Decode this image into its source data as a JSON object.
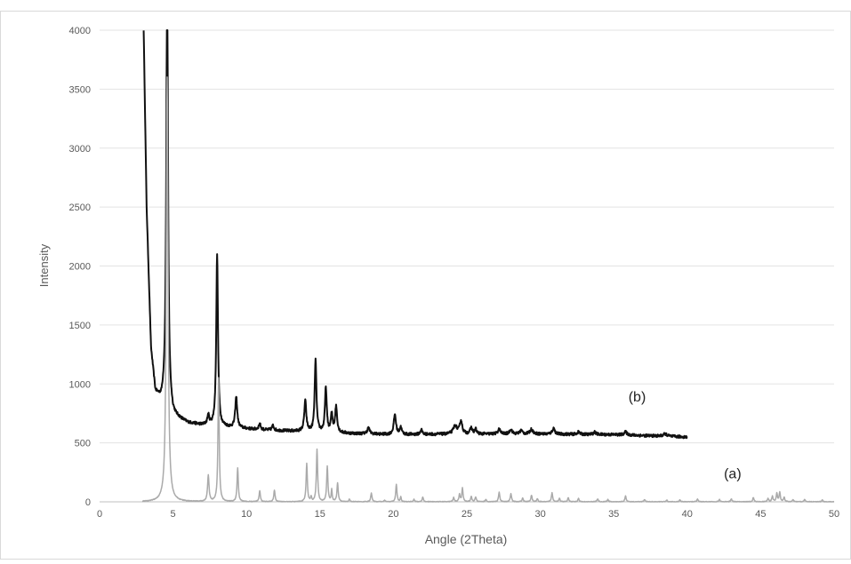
{
  "chart_data": {
    "type": "line",
    "title": "",
    "xlabel": "Angle (2Theta)",
    "ylabel": "Intensity",
    "xlim": [
      0,
      50
    ],
    "ylim": [
      0,
      4000
    ],
    "x_ticks": [
      0,
      5,
      10,
      15,
      20,
      25,
      30,
      35,
      40,
      45,
      50
    ],
    "y_ticks": [
      0,
      500,
      1000,
      1500,
      2000,
      2500,
      3000,
      3500,
      4000
    ],
    "grid": "horizontal",
    "legend": "none",
    "annotations": [
      {
        "text": "(b)",
        "x": 36.0,
        "y": 850
      },
      {
        "text": "(a)",
        "x": 42.5,
        "y": 200
      }
    ],
    "series": [
      {
        "color": "#111111",
        "baseline": [
          [
            3.0,
            4000
          ],
          [
            3.2,
            2500
          ],
          [
            3.5,
            1300
          ],
          [
            3.8,
            930
          ],
          [
            4.2,
            850
          ],
          [
            4.5,
            900
          ],
          [
            5.0,
            730
          ],
          [
            6.0,
            670
          ],
          [
            7.0,
            650
          ],
          [
            9.0,
            630
          ],
          [
            11.0,
            610
          ],
          [
            13.0,
            600
          ],
          [
            15.0,
            590
          ],
          [
            17.0,
            580
          ],
          [
            18.5,
            575
          ],
          [
            20.0,
            570
          ],
          [
            25.0,
            575
          ],
          [
            30.0,
            575
          ],
          [
            35.0,
            570
          ],
          [
            40.0,
            550
          ]
        ],
        "peaks": [
          {
            "x": 4.6,
            "h": 3600,
            "w": 0.07
          },
          {
            "x": 7.4,
            "h": 80,
            "w": 0.08
          },
          {
            "x": 8.0,
            "h": 1460,
            "w": 0.07
          },
          {
            "x": 9.3,
            "h": 260,
            "w": 0.08
          },
          {
            "x": 10.9,
            "h": 50,
            "w": 0.08
          },
          {
            "x": 11.8,
            "h": 40,
            "w": 0.08
          },
          {
            "x": 14.0,
            "h": 260,
            "w": 0.08
          },
          {
            "x": 14.7,
            "h": 610,
            "w": 0.07
          },
          {
            "x": 15.4,
            "h": 380,
            "w": 0.07
          },
          {
            "x": 15.8,
            "h": 150,
            "w": 0.07
          },
          {
            "x": 16.1,
            "h": 220,
            "w": 0.08
          },
          {
            "x": 18.3,
            "h": 50,
            "w": 0.1
          },
          {
            "x": 20.1,
            "h": 170,
            "w": 0.09
          },
          {
            "x": 20.5,
            "h": 60,
            "w": 0.08
          },
          {
            "x": 21.9,
            "h": 40,
            "w": 0.08
          },
          {
            "x": 24.2,
            "h": 70,
            "w": 0.15
          },
          {
            "x": 24.6,
            "h": 110,
            "w": 0.1
          },
          {
            "x": 25.3,
            "h": 50,
            "w": 0.09
          },
          {
            "x": 25.6,
            "h": 40,
            "w": 0.08
          },
          {
            "x": 27.2,
            "h": 40,
            "w": 0.1
          },
          {
            "x": 28.0,
            "h": 40,
            "w": 0.1
          },
          {
            "x": 28.7,
            "h": 30,
            "w": 0.1
          },
          {
            "x": 29.4,
            "h": 40,
            "w": 0.12
          },
          {
            "x": 30.9,
            "h": 50,
            "w": 0.1
          },
          {
            "x": 32.6,
            "h": 20,
            "w": 0.1
          },
          {
            "x": 33.7,
            "h": 20,
            "w": 0.1
          },
          {
            "x": 35.8,
            "h": 25,
            "w": 0.12
          },
          {
            "x": 38.5,
            "h": 20,
            "w": 0.15
          }
        ],
        "noise": 12
      },
      {
        "color": "#aaaaaa",
        "baseline": [
          [
            2.9,
            0
          ],
          [
            50.0,
            0
          ]
        ],
        "peaks": [
          {
            "x": 4.6,
            "h": 3600,
            "w": 0.07
          },
          {
            "x": 7.4,
            "h": 220,
            "w": 0.06
          },
          {
            "x": 8.1,
            "h": 1050,
            "w": 0.05
          },
          {
            "x": 9.4,
            "h": 285,
            "w": 0.05
          },
          {
            "x": 10.9,
            "h": 95,
            "w": 0.05
          },
          {
            "x": 11.9,
            "h": 100,
            "w": 0.05
          },
          {
            "x": 14.1,
            "h": 325,
            "w": 0.05
          },
          {
            "x": 14.4,
            "h": 40,
            "w": 0.04
          },
          {
            "x": 14.8,
            "h": 445,
            "w": 0.05
          },
          {
            "x": 15.5,
            "h": 300,
            "w": 0.05
          },
          {
            "x": 15.8,
            "h": 100,
            "w": 0.04
          },
          {
            "x": 16.2,
            "h": 160,
            "w": 0.05
          },
          {
            "x": 17.0,
            "h": 20,
            "w": 0.05
          },
          {
            "x": 18.5,
            "h": 75,
            "w": 0.05
          },
          {
            "x": 19.4,
            "h": 15,
            "w": 0.05
          },
          {
            "x": 20.2,
            "h": 145,
            "w": 0.05
          },
          {
            "x": 20.5,
            "h": 40,
            "w": 0.04
          },
          {
            "x": 21.4,
            "h": 20,
            "w": 0.05
          },
          {
            "x": 22.0,
            "h": 40,
            "w": 0.05
          },
          {
            "x": 24.1,
            "h": 35,
            "w": 0.05
          },
          {
            "x": 24.5,
            "h": 60,
            "w": 0.05
          },
          {
            "x": 24.7,
            "h": 115,
            "w": 0.05
          },
          {
            "x": 25.3,
            "h": 45,
            "w": 0.05
          },
          {
            "x": 25.6,
            "h": 40,
            "w": 0.05
          },
          {
            "x": 26.3,
            "h": 20,
            "w": 0.05
          },
          {
            "x": 27.2,
            "h": 80,
            "w": 0.05
          },
          {
            "x": 28.0,
            "h": 70,
            "w": 0.05
          },
          {
            "x": 28.8,
            "h": 30,
            "w": 0.05
          },
          {
            "x": 29.4,
            "h": 55,
            "w": 0.05
          },
          {
            "x": 29.8,
            "h": 25,
            "w": 0.05
          },
          {
            "x": 30.8,
            "h": 75,
            "w": 0.05
          },
          {
            "x": 31.3,
            "h": 30,
            "w": 0.05
          },
          {
            "x": 31.9,
            "h": 35,
            "w": 0.05
          },
          {
            "x": 32.6,
            "h": 30,
            "w": 0.05
          },
          {
            "x": 33.9,
            "h": 25,
            "w": 0.05
          },
          {
            "x": 34.6,
            "h": 20,
            "w": 0.05
          },
          {
            "x": 35.8,
            "h": 50,
            "w": 0.05
          },
          {
            "x": 37.1,
            "h": 20,
            "w": 0.05
          },
          {
            "x": 38.6,
            "h": 15,
            "w": 0.05
          },
          {
            "x": 39.5,
            "h": 15,
            "w": 0.05
          },
          {
            "x": 40.7,
            "h": 25,
            "w": 0.05
          },
          {
            "x": 42.2,
            "h": 20,
            "w": 0.05
          },
          {
            "x": 43.0,
            "h": 25,
            "w": 0.05
          },
          {
            "x": 44.5,
            "h": 35,
            "w": 0.05
          },
          {
            "x": 45.5,
            "h": 30,
            "w": 0.05
          },
          {
            "x": 45.8,
            "h": 45,
            "w": 0.05
          },
          {
            "x": 46.1,
            "h": 70,
            "w": 0.05
          },
          {
            "x": 46.3,
            "h": 80,
            "w": 0.05
          },
          {
            "x": 46.6,
            "h": 40,
            "w": 0.05
          },
          {
            "x": 47.2,
            "h": 20,
            "w": 0.05
          },
          {
            "x": 48.0,
            "h": 20,
            "w": 0.05
          },
          {
            "x": 49.2,
            "h": 15,
            "w": 0.05
          }
        ],
        "noise": 3
      }
    ]
  }
}
